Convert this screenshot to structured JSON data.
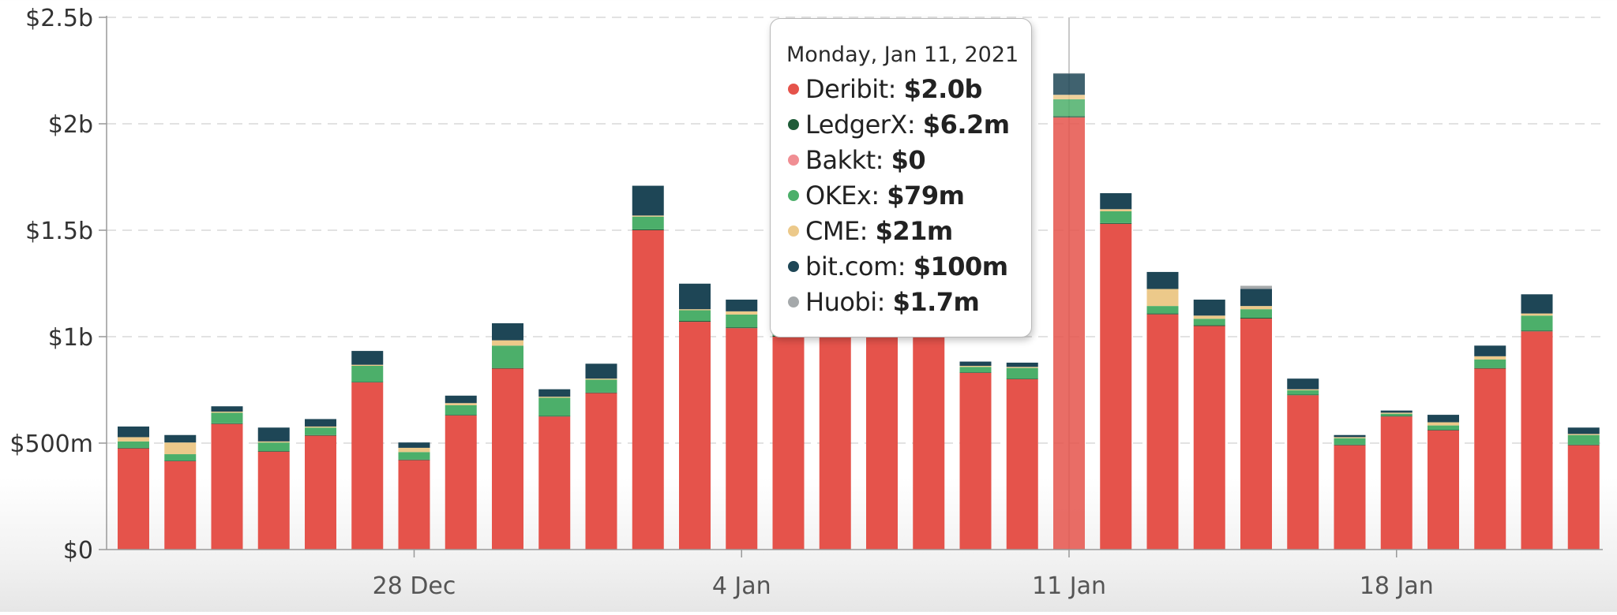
{
  "chart_data": {
    "type": "bar",
    "stacked": true,
    "currency": "$",
    "y_ticks": [
      "$0",
      "$500m",
      "$1b",
      "$1.5b",
      "$2b",
      "$2.5b"
    ],
    "y_tick_values": [
      0,
      0.5,
      1.0,
      1.5,
      2.0,
      2.5
    ],
    "ylim": [
      0,
      2.5
    ],
    "y_unit": "billions USD",
    "x_ticks": [
      {
        "label": "28 Dec",
        "index": 6
      },
      {
        "label": "4 Jan",
        "index": 13
      },
      {
        "label": "11 Jan",
        "index": 20
      },
      {
        "label": "18 Jan",
        "index": 27
      }
    ],
    "categories": [
      "2020-12-22",
      "2020-12-23",
      "2020-12-24",
      "2020-12-25",
      "2020-12-26",
      "2020-12-27",
      "2020-12-28",
      "2020-12-29",
      "2020-12-30",
      "2020-12-31",
      "2021-01-01",
      "2021-01-02",
      "2021-01-03",
      "2021-01-04",
      "2021-01-05",
      "2021-01-06",
      "2021-01-07",
      "2021-01-08",
      "2021-01-09",
      "2021-01-10",
      "2021-01-11",
      "2021-01-12",
      "2021-01-13",
      "2021-01-14",
      "2021-01-15",
      "2021-01-16",
      "2021-01-17",
      "2021-01-18",
      "2021-01-19",
      "2021-01-20",
      "2021-01-21",
      "2021-01-22",
      "2021-01-23"
    ],
    "series": [
      {
        "name": "Deribit",
        "color": "#e5534b",
        "values": [
          0.475,
          0.415,
          0.59,
          0.46,
          0.535,
          0.785,
          0.42,
          0.63,
          0.85,
          0.625,
          0.735,
          1.5,
          1.07,
          1.04,
          1.0,
          1.0,
          1.0,
          1.0,
          0.83,
          0.8,
          2.03,
          1.53,
          1.105,
          1.05,
          1.085,
          0.725,
          0.49,
          0.625,
          0.56,
          0.85,
          1.025,
          0.49,
          0
        ]
      },
      {
        "name": "LedgerX",
        "color": "#1f5c38",
        "values": [
          0.003,
          0.003,
          0.003,
          0.003,
          0.003,
          0.003,
          0.003,
          0.003,
          0.003,
          0.003,
          0.003,
          0.004,
          0.004,
          0.004,
          0.004,
          0.004,
          0.004,
          0.004,
          0.003,
          0.003,
          0.0062,
          0.004,
          0.004,
          0.004,
          0.004,
          0.003,
          0.003,
          0.003,
          0.003,
          0.003,
          0.004,
          0.003,
          0
        ]
      },
      {
        "name": "Bakkt",
        "color": "#f08e93",
        "values": [
          0,
          0,
          0,
          0,
          0,
          0,
          0,
          0,
          0,
          0,
          0,
          0,
          0,
          0,
          0,
          0,
          0,
          0,
          0,
          0,
          0,
          0,
          0,
          0,
          0,
          0,
          0,
          0,
          0,
          0,
          0,
          0,
          0
        ]
      },
      {
        "name": "OKEx",
        "color": "#4caf6a",
        "values": [
          0.03,
          0.03,
          0.05,
          0.04,
          0.035,
          0.075,
          0.035,
          0.045,
          0.105,
          0.085,
          0.06,
          0.06,
          0.05,
          0.06,
          0.03,
          0.03,
          0.03,
          0.03,
          0.025,
          0.05,
          0.079,
          0.055,
          0.035,
          0.03,
          0.04,
          0.02,
          0.03,
          0.01,
          0.02,
          0.04,
          0.07,
          0.045,
          0
        ]
      },
      {
        "name": "CME",
        "color": "#ecc98a",
        "values": [
          0.02,
          0.055,
          0.005,
          0.005,
          0.005,
          0.005,
          0.02,
          0.01,
          0.025,
          0.005,
          0.005,
          0.005,
          0.005,
          0.015,
          0.005,
          0.005,
          0.005,
          0.005,
          0.005,
          0.005,
          0.021,
          0.01,
          0.08,
          0.015,
          0.015,
          0.005,
          0.005,
          0.005,
          0.015,
          0.015,
          0.01,
          0.005,
          0
        ]
      },
      {
        "name": "bit.com",
        "color": "#1e4656",
        "values": [
          0.05,
          0.035,
          0.025,
          0.065,
          0.035,
          0.065,
          0.025,
          0.035,
          0.08,
          0.035,
          0.07,
          0.14,
          0.12,
          0.055,
          0.03,
          0.03,
          0.03,
          0.03,
          0.02,
          0.02,
          0.1,
          0.075,
          0.08,
          0.075,
          0.08,
          0.05,
          0.01,
          0.01,
          0.035,
          0.05,
          0.09,
          0.03,
          0
        ]
      },
      {
        "name": "Huobi",
        "color": "#a5a9ab",
        "values": [
          0,
          0,
          0,
          0,
          0,
          0,
          0,
          0,
          0,
          0,
          0,
          0,
          0,
          0,
          0,
          0,
          0,
          0,
          0,
          0,
          0.0017,
          0,
          0,
          0,
          0.015,
          0,
          0,
          0,
          0,
          0,
          0,
          0,
          0
        ]
      }
    ],
    "highlight_index": 20,
    "tooltip": {
      "date": "Monday, Jan 11, 2021",
      "rows": [
        {
          "name": "Deribit",
          "value": "$2.0b",
          "color": "#e5534b"
        },
        {
          "name": "LedgerX",
          "value": "$6.2m",
          "color": "#1f5c38"
        },
        {
          "name": "Bakkt",
          "value": "$0",
          "color": "#f08e93"
        },
        {
          "name": "OKEx",
          "value": "$79m",
          "color": "#4caf6a"
        },
        {
          "name": "CME",
          "value": "$21m",
          "color": "#ecc98a"
        },
        {
          "name": "bit.com",
          "value": "$100m",
          "color": "#1e4656"
        },
        {
          "name": "Huobi",
          "value": "$1.7m",
          "color": "#a5a9ab"
        }
      ]
    },
    "grid": true,
    "legend": "none"
  }
}
